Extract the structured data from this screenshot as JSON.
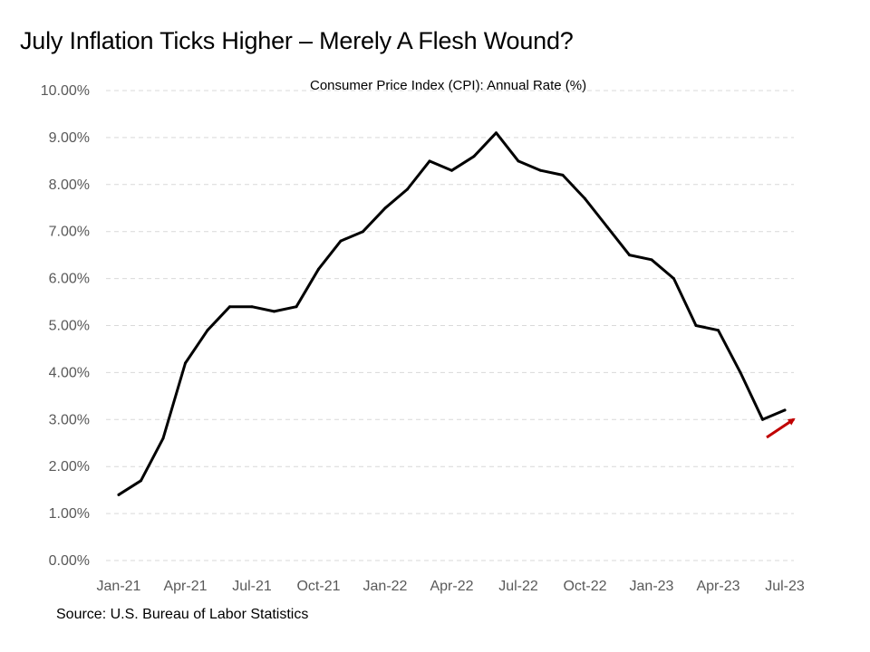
{
  "header": {
    "title": "July Inflation Ticks Higher – Merely A Flesh Wound?"
  },
  "footer": {
    "source": "Source: U.S. Bureau of Labor Statistics"
  },
  "chart_data": {
    "type": "line",
    "subtitle": "Consumer Price Index (CPI): Annual Rate (%)",
    "x": [
      "2021-01",
      "2021-02",
      "2021-03",
      "2021-04",
      "2021-05",
      "2021-06",
      "2021-07",
      "2021-08",
      "2021-09",
      "2021-10",
      "2021-11",
      "2021-12",
      "2022-01",
      "2022-02",
      "2022-03",
      "2022-04",
      "2022-05",
      "2022-06",
      "2022-07",
      "2022-08",
      "2022-09",
      "2022-10",
      "2022-11",
      "2022-12",
      "2023-01",
      "2023-02",
      "2023-03",
      "2023-04",
      "2023-05",
      "2023-06",
      "2023-07"
    ],
    "series": [
      {
        "values": [
          1.4,
          1.7,
          2.6,
          4.2,
          4.9,
          5.4,
          5.4,
          5.3,
          5.4,
          6.2,
          6.8,
          7.0,
          7.5,
          7.9,
          8.5,
          8.3,
          8.6,
          9.1,
          8.5,
          8.3,
          8.2,
          7.7,
          7.1,
          6.5,
          6.4,
          6.0,
          5.0,
          4.9,
          4.0,
          3.0,
          3.2
        ],
        "color": "#000000"
      }
    ],
    "x_tick_labels": [
      "Jan-21",
      "Apr-21",
      "Jul-21",
      "Oct-21",
      "Jan-22",
      "Apr-22",
      "Jul-22",
      "Oct-22",
      "Jan-23",
      "Apr-23",
      "Jul-23"
    ],
    "y_tick_labels": [
      "0.00%",
      "1.00%",
      "2.00%",
      "3.00%",
      "4.00%",
      "5.00%",
      "6.00%",
      "7.00%",
      "8.00%",
      "9.00%",
      "10.00%"
    ],
    "ylim": [
      0,
      10
    ],
    "grid": true,
    "annotation": {
      "type": "arrow",
      "meaning": "uptick in latest reading",
      "color": "#c00000"
    }
  }
}
